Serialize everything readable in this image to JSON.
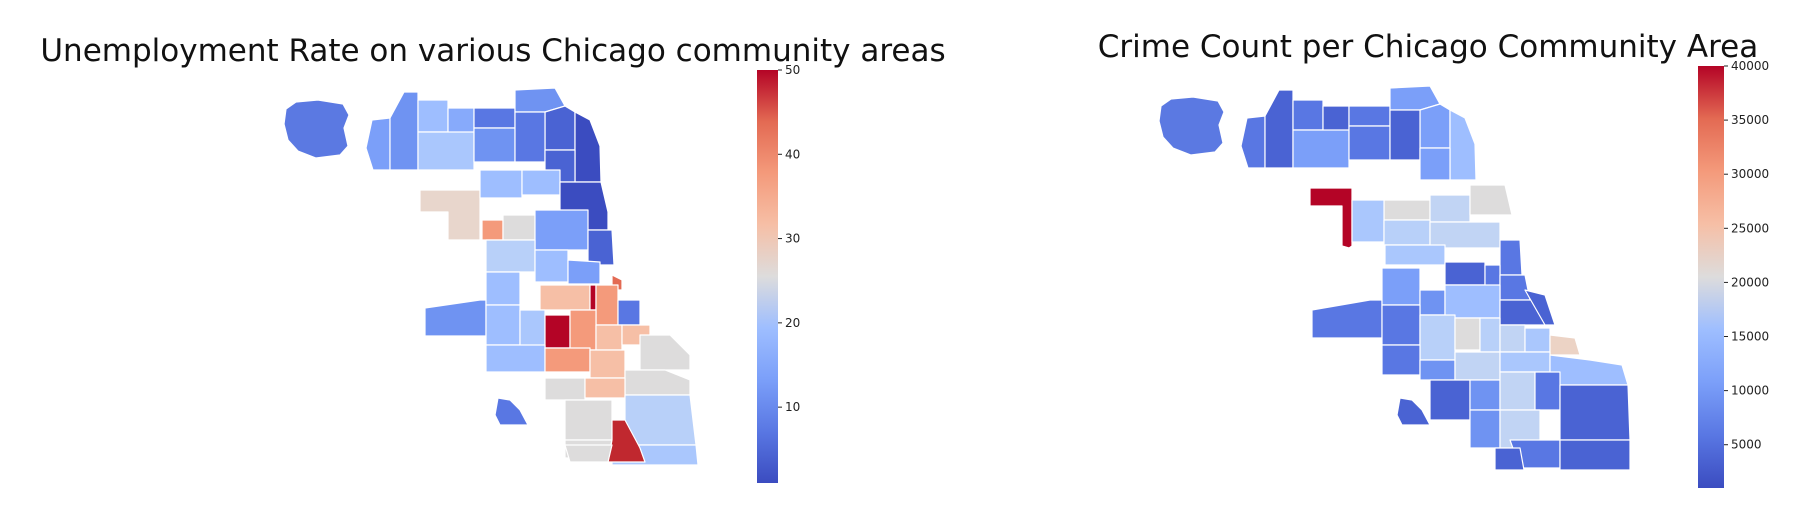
{
  "chart_data": [
    {
      "type": "choropleth",
      "title": "Unemployment Rate on various Chicago community areas",
      "colormap": "coolwarm",
      "vmin": 1,
      "vmax": 50,
      "colorbar_ticks": [
        10,
        20,
        30,
        40,
        50
      ],
      "colorbar_tick_labels": [
        "10",
        "20",
        "30",
        "40",
        "50"
      ],
      "grid": false,
      "legend": "colorbar-right"
    },
    {
      "type": "choropleth",
      "title": "Crime Count per Chicago Community Area",
      "colormap": "coolwarm",
      "vmin": 1000,
      "vmax": 40000,
      "colorbar_ticks": [
        5000,
        10000,
        15000,
        20000,
        25000,
        30000,
        35000,
        40000
      ],
      "colorbar_tick_labels": [
        "5000",
        "10000",
        "15000",
        "20000",
        "25000",
        "30000",
        "35000",
        "40000"
      ],
      "grid": false,
      "legend": "colorbar-right"
    }
  ]
}
